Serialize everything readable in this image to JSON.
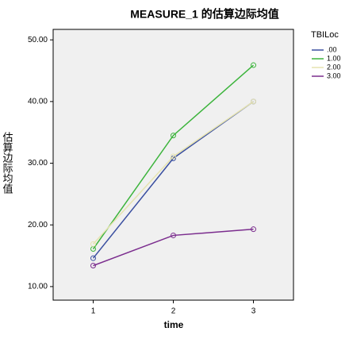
{
  "chart_data": {
    "type": "line",
    "title": "MEASURE_1 的估算边际均值",
    "x_label": "time",
    "y_label": "估算边际均值",
    "x": [
      1,
      2,
      3
    ],
    "xlim": [
      0.5,
      3.5
    ],
    "xticks": [
      1,
      2,
      3
    ],
    "ylim": [
      7.8,
      51.7
    ],
    "yticks": [
      {
        "value": 10,
        "label": "10.00"
      },
      {
        "value": 20,
        "label": "20.00"
      },
      {
        "value": 30,
        "label": "30.00"
      },
      {
        "value": 40,
        "label": "40.00"
      },
      {
        "value": 50,
        "label": "50.00"
      }
    ],
    "legend_title": "TBILoc",
    "series": [
      {
        "name": ".00",
        "color": "#3a4fa0",
        "values": [
          14.6,
          30.8,
          40.0
        ]
      },
      {
        "name": "1.00",
        "color": "#3cb43c",
        "values": [
          16.1,
          34.5,
          45.9
        ]
      },
      {
        "name": "2.00",
        "color": "#e6e3b0",
        "values": [
          16.9,
          31.1,
          40.0
        ]
      },
      {
        "name": "3.00",
        "color": "#7b2d8e",
        "values": [
          13.4,
          18.3,
          19.3
        ]
      }
    ]
  }
}
